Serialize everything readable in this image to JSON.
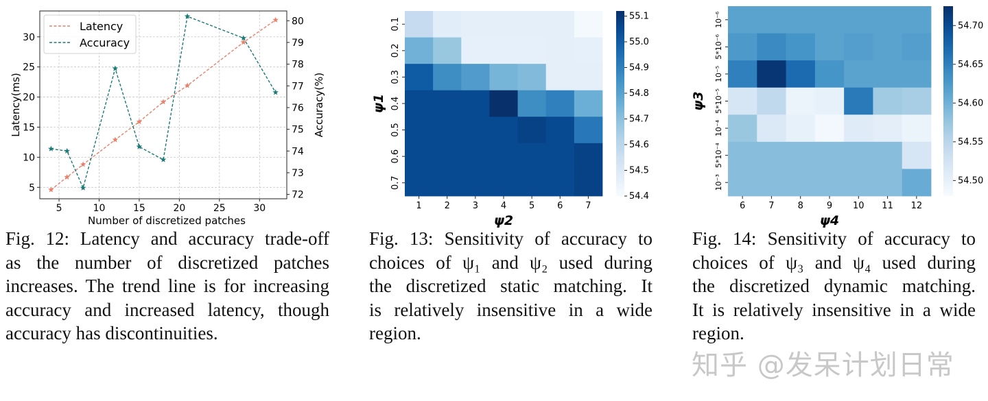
{
  "chart_data": [
    {
      "type": "line",
      "xlabel": "Number of discretized patches",
      "ylabel": "Latency(ms)",
      "y2label": "Accuracy(%)",
      "xticks": [
        5,
        10,
        15,
        20,
        25,
        30
      ],
      "yticks": [
        5,
        10,
        15,
        20,
        25,
        30
      ],
      "y2ticks": [
        72,
        73,
        74,
        75,
        76,
        77,
        78,
        79,
        80
      ],
      "xlim": [
        2.6,
        33.4
      ],
      "ylim": [
        3.1,
        34.3
      ],
      "y2lim": [
        71.8,
        80.45
      ],
      "grid": true,
      "legend_position": "top-left",
      "x": [
        4,
        6,
        8,
        12,
        15,
        18,
        21,
        28,
        32
      ],
      "series": [
        {
          "name": "Latency",
          "axis": "left",
          "color": "#e8806a",
          "marker": "star",
          "dash": "dashed",
          "values": [
            4.6,
            6.7,
            8.8,
            12.9,
            15.9,
            19.2,
            21.9,
            29.1,
            32.8
          ]
        },
        {
          "name": "Accuracy",
          "axis": "right",
          "color": "#1a7a75",
          "marker": "star",
          "dash": "dashed",
          "values": [
            74.1,
            74.0,
            72.3,
            77.8,
            74.2,
            73.6,
            80.2,
            79.2,
            76.7
          ]
        }
      ]
    },
    {
      "type": "heatmap",
      "xlabel": "ψ2",
      "ylabel": "ψ1",
      "xticklabels": [
        "1",
        "2",
        "3",
        "4",
        "5",
        "6",
        "7"
      ],
      "yticklabels": [
        "0.1",
        "0.2",
        "0.3",
        "0.4",
        "0.5",
        "0.6",
        "0.7"
      ],
      "colorbar_ticks": [
        54.4,
        54.5,
        54.6,
        54.7,
        54.8,
        54.9,
        55.0,
        55.1
      ],
      "vmin": 54.4,
      "vmax": 55.12,
      "colormap": "Blues",
      "values": [
        [
          54.58,
          54.48,
          54.47,
          54.47,
          54.47,
          54.47,
          54.41
        ],
        [
          54.75,
          54.68,
          54.46,
          54.46,
          54.46,
          54.47,
          54.46
        ],
        [
          55.0,
          54.86,
          54.82,
          54.74,
          54.72,
          54.47,
          54.47
        ],
        [
          55.05,
          55.05,
          55.05,
          55.12,
          54.86,
          54.9,
          54.76
        ],
        [
          55.05,
          55.05,
          55.05,
          55.05,
          55.07,
          55.05,
          54.92
        ],
        [
          55.05,
          55.05,
          55.05,
          55.05,
          55.05,
          55.05,
          55.07
        ],
        [
          55.05,
          55.05,
          55.05,
          55.05,
          55.05,
          55.05,
          55.07
        ]
      ]
    },
    {
      "type": "heatmap",
      "xlabel": "ψ4",
      "ylabel": "ψ3",
      "xticklabels": [
        "6",
        "7",
        "8",
        "9",
        "10",
        "11",
        "12"
      ],
      "yticklabels": [
        "10⁻⁶",
        "5*10⁻⁶",
        "10⁻⁵",
        "5*10⁻⁵",
        "10⁻⁴",
        "5*10⁻⁴",
        "10⁻³"
      ],
      "colorbar_ticks": [
        54.5,
        54.55,
        54.6,
        54.65,
        54.7
      ],
      "vmin": 54.48,
      "vmax": 54.725,
      "colormap": "Blues",
      "values": [
        [
          54.615,
          54.615,
          54.615,
          54.615,
          54.615,
          54.615,
          54.615
        ],
        [
          54.625,
          54.64,
          54.63,
          54.615,
          54.62,
          54.615,
          54.62
        ],
        [
          54.65,
          54.72,
          54.67,
          54.63,
          54.615,
          54.615,
          54.615
        ],
        [
          54.52,
          54.545,
          54.495,
          54.5,
          54.655,
          54.57,
          54.565
        ],
        [
          54.575,
          54.515,
          54.5,
          54.485,
          54.51,
          54.505,
          54.495
        ],
        [
          54.585,
          54.585,
          54.585,
          54.585,
          54.585,
          54.585,
          54.52
        ],
        [
          54.585,
          54.585,
          54.585,
          54.585,
          54.585,
          54.585,
          54.605
        ]
      ]
    }
  ],
  "captions": {
    "fig12": [
      "Fig. 12: Latency and accuracy trade-off",
      "as the number of discretized patches",
      "increases. The trend line is for increasing",
      "accuracy and increased latency, though",
      "accuracy has discontinuities."
    ],
    "fig13": [
      "Fig. 13: Sensitivity of accuracy to",
      "choices of ψ₁ and ψ₂ used during",
      "the discretized static matching. It",
      "is relatively insensitive in a wide",
      "region."
    ],
    "fig14": [
      "Fig. 14: Sensitivity of accuracy to",
      "choices of ψ₃ and ψ₄ used during",
      "the discretized dynamic matching.",
      "It is relatively insensitive in a wide",
      "region."
    ]
  },
  "watermark": "知乎 @发呆计划日常"
}
